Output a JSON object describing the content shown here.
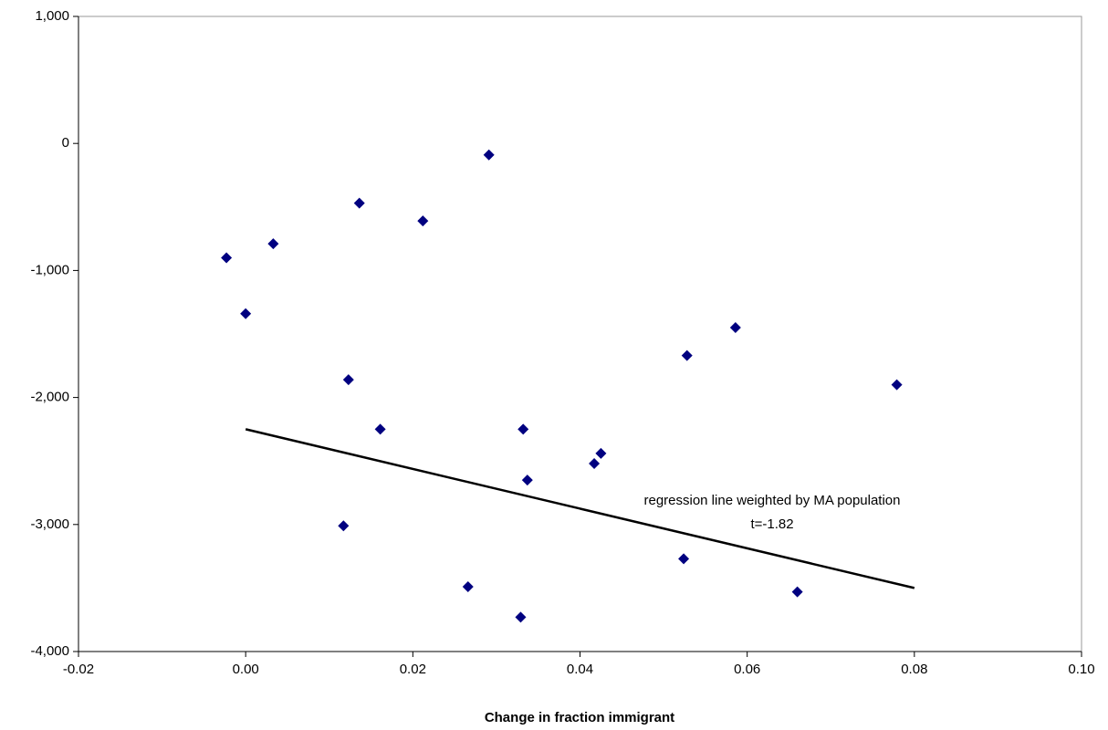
{
  "chart_data": {
    "type": "scatter",
    "x_label": "Change in fraction immigrant",
    "xlim": [
      -0.02,
      0.1
    ],
    "xticks": [
      -0.02,
      {
        "value": 0,
        "label": "0.00"
      },
      0.02,
      0.04,
      0.06,
      0.08,
      {
        "value": 0.1,
        "label": "0.10"
      }
    ],
    "ylim": [
      -4000,
      1000
    ],
    "yticks": [
      {
        "value": -4000,
        "label": "-4,000"
      },
      {
        "value": -3000,
        "label": "-3,000"
      },
      {
        "value": -2000,
        "label": "-2,000"
      },
      {
        "value": -1000,
        "label": "-1,000"
      },
      0,
      {
        "value": 1000,
        "label": "1,000"
      }
    ],
    "grid": false,
    "series": [
      {
        "type": "scatter",
        "color": "#000080",
        "x": [
          -0.0023,
          0.0,
          0.0033,
          0.0117,
          0.0123,
          0.0136,
          0.0161,
          0.0212,
          0.0266,
          0.0291,
          0.0329,
          0.0332,
          0.0337,
          0.0417,
          0.0425,
          0.0528,
          0.0524,
          0.0586,
          0.066,
          0.0779
        ],
        "values": [
          -900,
          -1340,
          -790,
          -3010,
          -1860,
          -470,
          -2250,
          -610,
          -3490,
          -90,
          -3730,
          -2250,
          -2650,
          -2520,
          -2440,
          -1670,
          -3270,
          -1450,
          -3530,
          -1900
        ]
      },
      {
        "type": "line",
        "color": "#000000",
        "x": [
          0.0,
          0.08
        ],
        "values": [
          -2250,
          -3500
        ]
      }
    ],
    "annotations": [
      "regression line weighted by MA population",
      "t=-1.82"
    ]
  }
}
